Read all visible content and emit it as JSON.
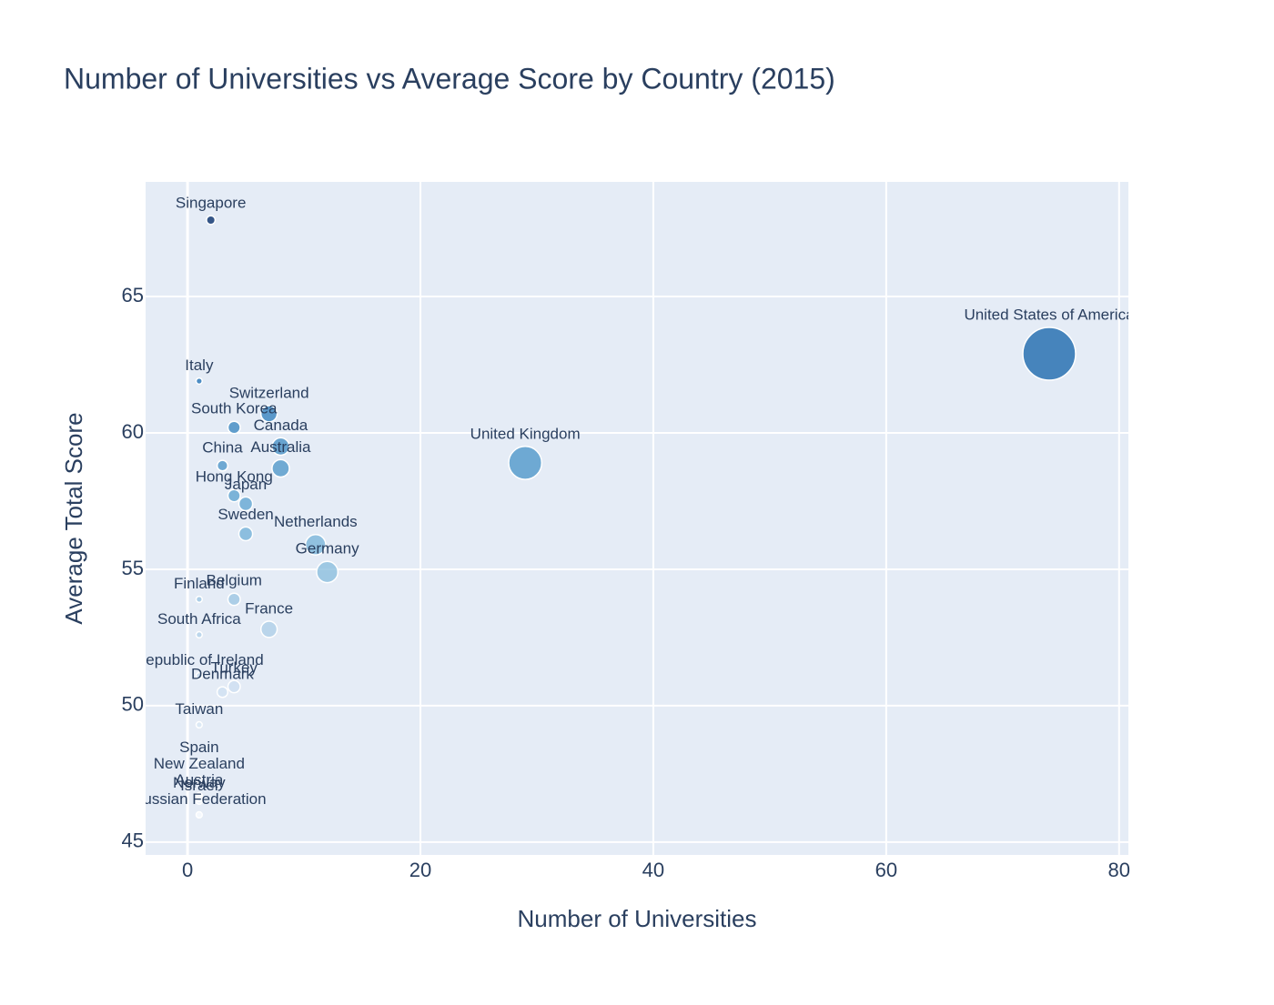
{
  "chart_data": {
    "type": "scatter",
    "title": "Number of Universities vs Average Score by Country (2015)",
    "xlabel": "Number of Universities",
    "ylabel": "Average Total Score",
    "labels": [
      "Singapore",
      "United States of America",
      "Italy",
      "Switzerland",
      "South Korea",
      "Canada",
      "United Kingdom",
      "China",
      "Australia",
      "Hong Kong",
      "Japan",
      "Sweden",
      "Netherlands",
      "Germany",
      "Belgium",
      "Finland",
      "France",
      "South Africa",
      "Republic of Ireland",
      "Denmark",
      "Turkey",
      "Taiwan",
      "Spain",
      "New Zealand",
      "Austria",
      "Israel",
      "Norway",
      "Russian Federation"
    ],
    "x": [
      2,
      74,
      1,
      7,
      4,
      8,
      29,
      3,
      8,
      4,
      5,
      5,
      11,
      12,
      4,
      1,
      7,
      1,
      1,
      3,
      4,
      1,
      1,
      1,
      1,
      1,
      1,
      1
    ],
    "y": [
      67.8,
      62.9,
      61.9,
      60.7,
      60.2,
      59.5,
      58.9,
      58.8,
      58.7,
      57.7,
      57.4,
      56.3,
      55.9,
      54.9,
      53.9,
      53.9,
      52.8,
      52.6,
      51.1,
      50.5,
      50.7,
      49.3,
      47.9,
      47.3,
      46.7,
      46.5,
      46.6,
      46.0
    ],
    "xlim": [
      -3.6,
      80.8
    ],
    "ylim": [
      44.53,
      69.2
    ],
    "xticks": [
      0,
      20,
      40,
      60,
      80
    ],
    "yticks": [
      45,
      50,
      55,
      60,
      65
    ],
    "grid": true,
    "colorscale": [
      "#f7fbff",
      "#c6dbef",
      "#6baed6",
      "#2171b5",
      "#08306b"
    ]
  }
}
